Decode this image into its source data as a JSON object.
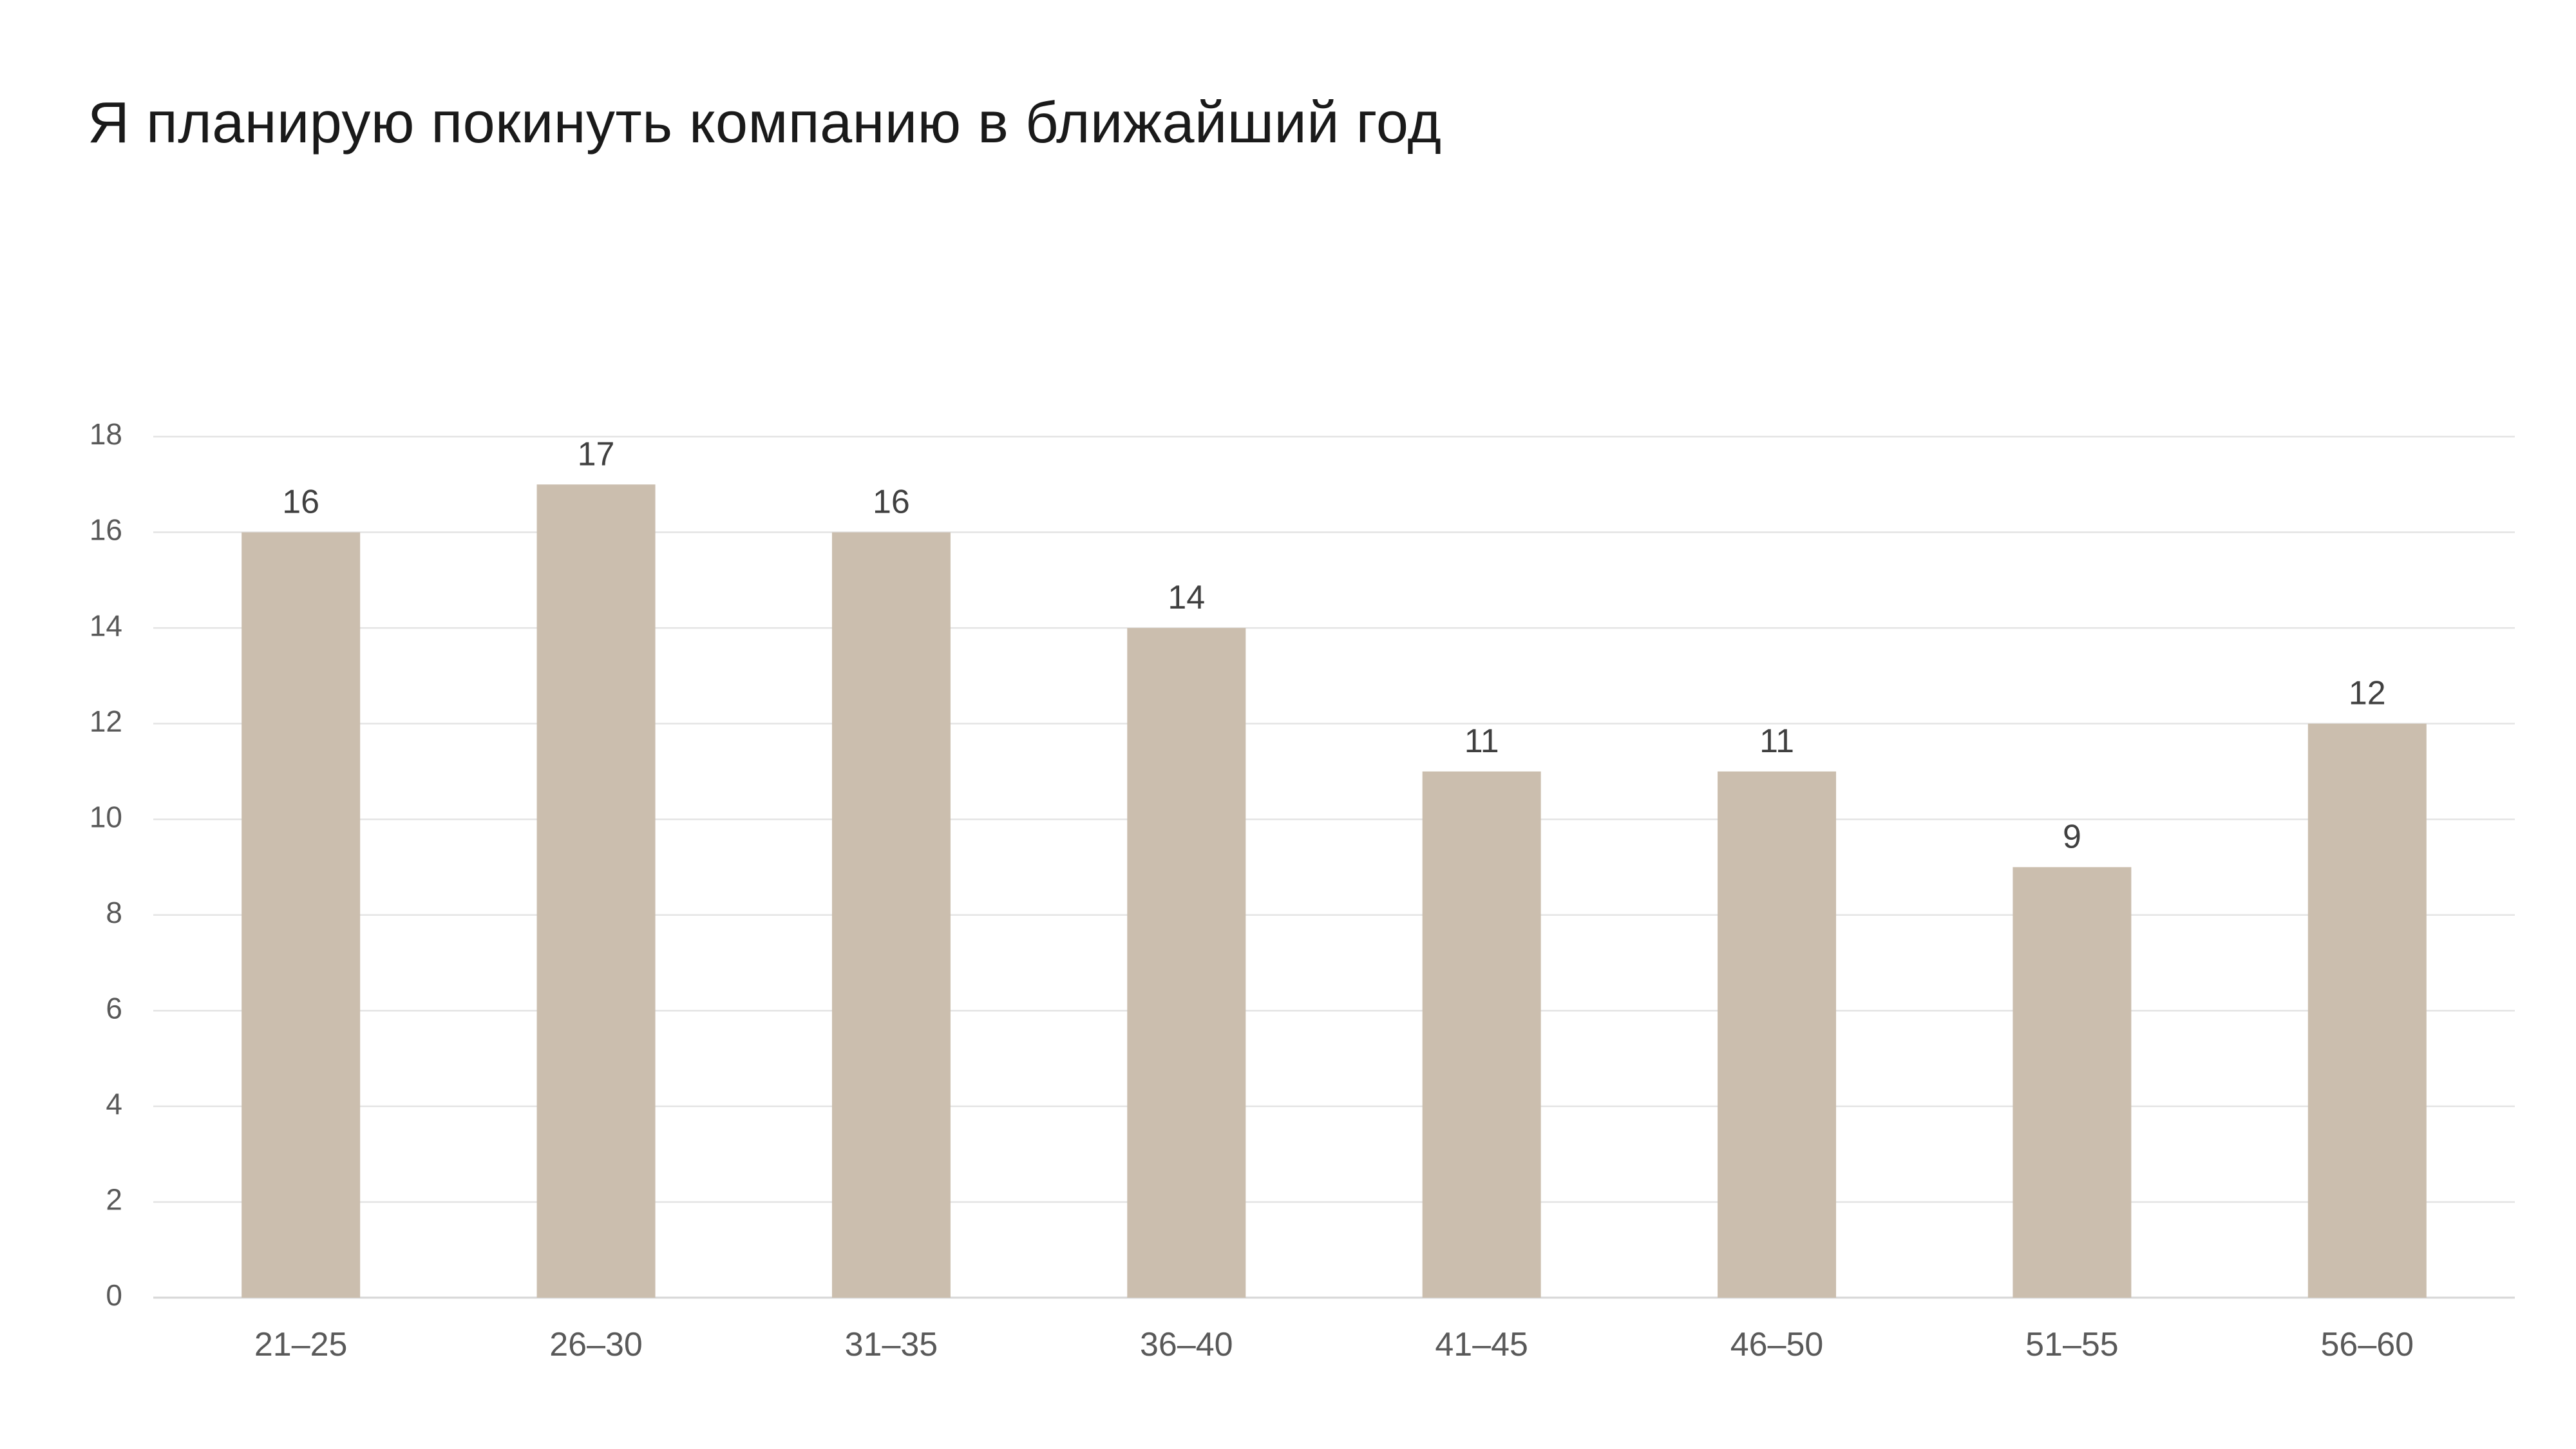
{
  "chart_data": {
    "type": "bar",
    "title": "Я планирую покинуть компанию в ближайший год",
    "xlabel": "",
    "ylabel": "",
    "categories": [
      "21–25",
      "26–30",
      "31–35",
      "36–40",
      "41–45",
      "46–50",
      "51–55",
      "56–60"
    ],
    "series": [
      {
        "values": [
          16,
          17,
          16,
          14,
          11,
          11,
          9,
          12
        ],
        "color": "#CBBEAE"
      }
    ],
    "ylim": [
      0,
      18
    ],
    "yticks": [
      0,
      2,
      4,
      6,
      8,
      10,
      12,
      14,
      16,
      18
    ],
    "grid": true,
    "data_labels": true,
    "legend": "none"
  }
}
